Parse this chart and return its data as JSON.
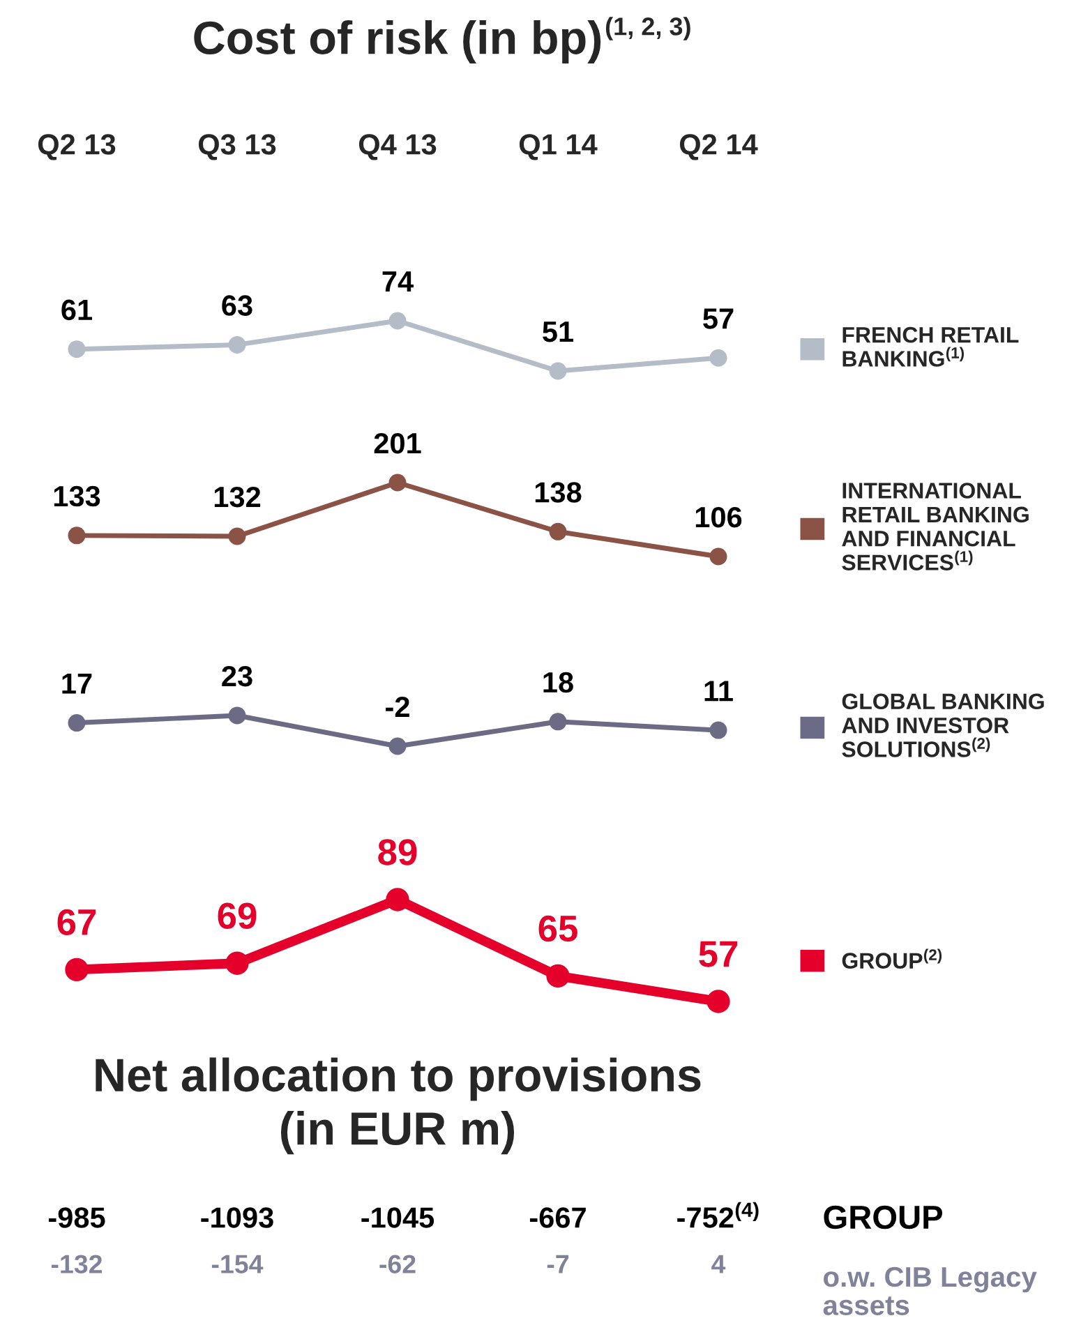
{
  "chart_data": [
    {
      "type": "line",
      "title": "Cost of risk (in bp)$^{(1, 2, 3)}$",
      "categories": [
        "Q2 13",
        "Q3 13",
        "Q4 13",
        "Q1 14",
        "Q2 14"
      ],
      "tick_labels": "x",
      "data_labels": true,
      "legend": "right",
      "marker": "circle",
      "series": [
        {
          "name": "FRENCH RETAIL\nBANKING$^{(1)}$",
          "color": "#b4bcc8",
          "values": [
            61,
            63,
            74,
            51,
            57
          ]
        }
      ]
    },
    {
      "type": "line",
      "categories": [
        null,
        null,
        null,
        null,
        null
      ],
      "tick_labels": false,
      "data_labels": true,
      "legend": "right",
      "marker": "circle",
      "series": [
        {
          "name": "INTERNATIONAL\nRETAIL BANKING\nAND FINANCIAL\nSERVICES$^{(1)}$",
          "color": "#8b5346",
          "values": [
            133,
            132,
            201,
            138,
            106
          ]
        }
      ]
    },
    {
      "type": "line",
      "categories": [
        null,
        null,
        null,
        null,
        null
      ],
      "tick_labels": false,
      "data_labels": true,
      "legend": "right",
      "marker": "circle",
      "series": [
        {
          "name": "GLOBAL BANKING\nAND INVESTOR\nSOLUTIONS$^{(2)}$",
          "color": "#6b6b85",
          "values": [
            17,
            23,
            -2,
            18,
            11
          ]
        }
      ]
    },
    {
      "type": "line",
      "categories": [
        null,
        null,
        null,
        null,
        null
      ],
      "tick_labels": false,
      "data_labels": true,
      "legend": "right",
      "marker": "circle",
      "series": [
        {
          "name": "GROUP$^{(2)}$",
          "color": "#e4002b",
          "values": [
            67,
            69,
            89,
            65,
            57
          ]
        }
      ]
    },
    {
      "type": "other",
      "title": "Net allocation to provisions\n(in EUR m)",
      "annotations": [
        "-985",
        "-1093",
        "-1045",
        "-667",
        "-752$^{(4)}$",
        "GROUP",
        "-132",
        "-154",
        "-62",
        "-7",
        "4",
        "o.w. CIB Legacy\nassets"
      ]
    }
  ]
}
